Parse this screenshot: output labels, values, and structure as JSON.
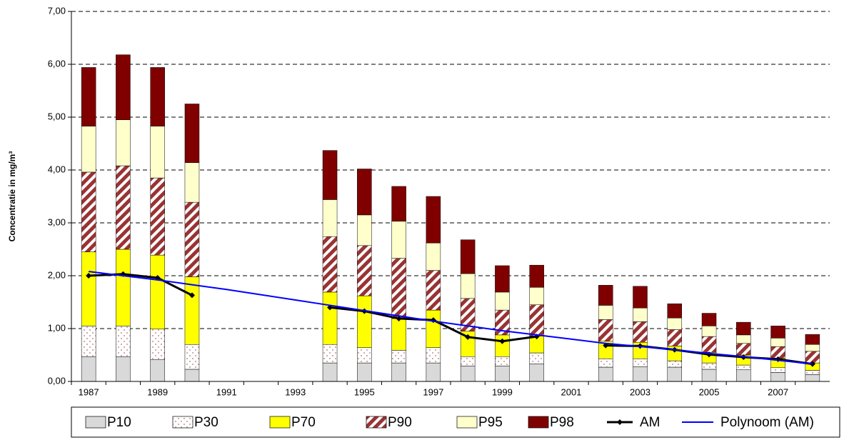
{
  "chart_data": {
    "type": "bar",
    "stacked": true,
    "y_label": "Concentratie in mg/m³",
    "categories": [
      "1987",
      null,
      "1989",
      null,
      "1991",
      null,
      "1993",
      null,
      "1995",
      null,
      "1997",
      null,
      "1999",
      null,
      "2001",
      null,
      "2003",
      null,
      "2005",
      null,
      "2007",
      null
    ],
    "ylim": [
      0,
      7
    ],
    "yticks": [
      {
        "value": 0,
        "label": "0,00"
      },
      {
        "value": 1,
        "label": "1,00"
      },
      {
        "value": 2,
        "label": "2,00"
      },
      {
        "value": 3,
        "label": "3,00"
      },
      {
        "value": 4,
        "label": "4,00"
      },
      {
        "value": 5,
        "label": "5,00"
      },
      {
        "value": 6,
        "label": "6,00"
      },
      {
        "value": 7,
        "label": "7,00"
      }
    ],
    "grid": true,
    "legend": "bottom",
    "series": [
      {
        "name": "P10",
        "type": "bar",
        "color": "#d9d9d9",
        "values": [
          0.47,
          0.47,
          0.41,
          0.23,
          null,
          null,
          null,
          0.35,
          0.35,
          0.35,
          0.35,
          0.29,
          0.29,
          0.33,
          null,
          0.27,
          0.28,
          0.27,
          0.23,
          0.22,
          0.17,
          0.13
        ]
      },
      {
        "name": "P30",
        "type": "bar",
        "color": "#b07070",
        "pattern": "dots",
        "values": [
          0.58,
          0.58,
          0.58,
          0.47,
          null,
          null,
          null,
          0.35,
          0.29,
          0.24,
          0.29,
          0.18,
          0.18,
          0.21,
          null,
          0.16,
          0.15,
          0.12,
          0.12,
          0.09,
          0.09,
          0.08
        ]
      },
      {
        "name": "P70",
        "type": "bar",
        "color": "#ffff00",
        "values": [
          1.4,
          1.45,
          1.4,
          1.28,
          null,
          null,
          null,
          0.99,
          0.98,
          0.6,
          0.71,
          0.48,
          0.41,
          0.32,
          null,
          0.33,
          0.31,
          0.28,
          0.2,
          0.19,
          0.18,
          0.14
        ]
      },
      {
        "name": "P90",
        "type": "bar",
        "color": "#993333",
        "pattern": "hatch",
        "values": [
          1.51,
          1.58,
          1.46,
          1.41,
          null,
          null,
          null,
          1.05,
          0.95,
          1.14,
          0.75,
          0.62,
          0.47,
          0.59,
          null,
          0.41,
          0.39,
          0.31,
          0.3,
          0.22,
          0.22,
          0.22
        ]
      },
      {
        "name": "P95",
        "type": "bar",
        "color": "#ffffcc",
        "values": [
          0.87,
          0.87,
          0.98,
          0.75,
          null,
          null,
          null,
          0.7,
          0.58,
          0.7,
          0.52,
          0.47,
          0.34,
          0.33,
          null,
          0.27,
          0.26,
          0.22,
          0.2,
          0.16,
          0.16,
          0.13
        ]
      },
      {
        "name": "P98",
        "type": "bar",
        "color": "#800000",
        "values": [
          1.11,
          1.23,
          1.11,
          1.11,
          null,
          null,
          null,
          0.93,
          0.87,
          0.66,
          0.88,
          0.64,
          0.5,
          0.42,
          null,
          0.38,
          0.41,
          0.27,
          0.24,
          0.24,
          0.23,
          0.19
        ]
      },
      {
        "name": "AM",
        "type": "line",
        "marker": "diamond",
        "color": "#000000",
        "values": [
          2.0,
          2.03,
          1.96,
          1.63,
          null,
          null,
          null,
          1.4,
          1.33,
          1.19,
          1.16,
          0.84,
          0.76,
          0.85,
          null,
          0.68,
          0.67,
          0.6,
          0.51,
          0.46,
          0.42,
          0.33
        ]
      },
      {
        "name": "Polynoom (AM)",
        "type": "line",
        "color": "#0000ff",
        "values": [
          2.08,
          2.0,
          1.92,
          1.83,
          1.74,
          1.64,
          1.54,
          1.44,
          1.34,
          1.24,
          1.14,
          1.05,
          0.96,
          0.88,
          0.8,
          0.72,
          0.66,
          0.6,
          0.53,
          0.47,
          0.4,
          0.33
        ]
      }
    ]
  }
}
